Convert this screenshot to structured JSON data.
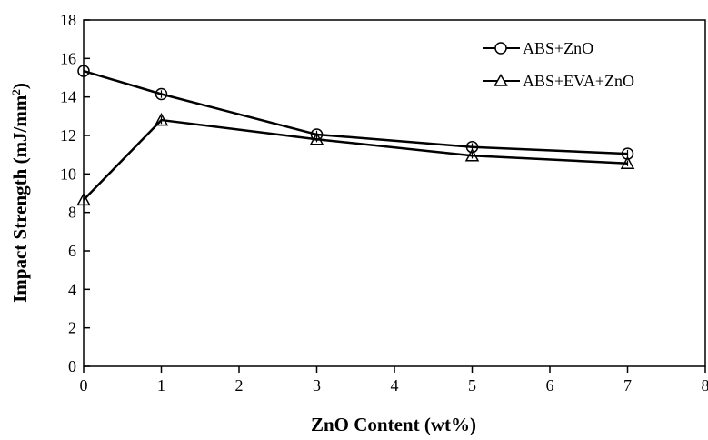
{
  "chart_data": {
    "type": "line",
    "title": "",
    "xlabel": "ZnO Content (wt%)",
    "ylabel_main": "Impact Strength (mJ/mm",
    "ylabel_sup": "2",
    "ylabel_tail": ")",
    "xlim": [
      0,
      8
    ],
    "ylim": [
      0,
      18
    ],
    "xticks": [
      0,
      1,
      2,
      3,
      4,
      5,
      6,
      7,
      8
    ],
    "yticks": [
      0,
      2,
      4,
      6,
      8,
      10,
      12,
      14,
      16,
      18
    ],
    "grid": false,
    "legend_position": "top-right",
    "series": [
      {
        "name": "ABS+ZnO",
        "marker": "circle",
        "x": [
          0,
          1,
          3,
          5,
          7
        ],
        "y": [
          15.35,
          14.15,
          12.05,
          11.4,
          11.05
        ],
        "err": [
          0.3,
          0.2,
          0.2,
          0.2,
          0.2
        ]
      },
      {
        "name": "ABS+EVA+ZnO",
        "marker": "triangle",
        "x": [
          0,
          1,
          3,
          5,
          7
        ],
        "y": [
          8.65,
          12.8,
          11.8,
          10.95,
          10.55
        ],
        "err": [
          0.15,
          0.2,
          0.15,
          0.15,
          0.15
        ]
      }
    ]
  }
}
